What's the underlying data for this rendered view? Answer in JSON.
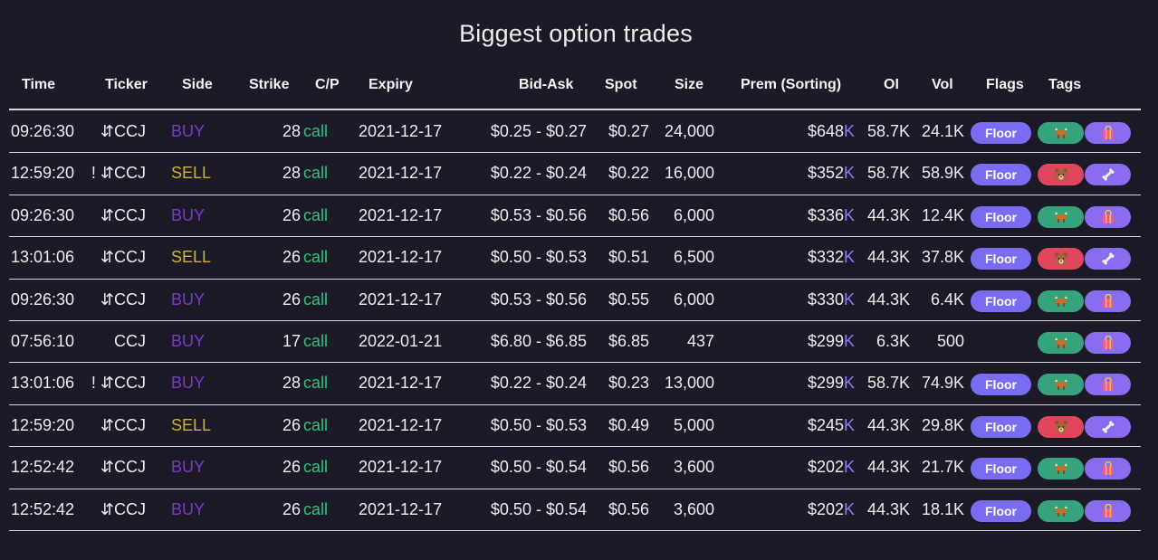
{
  "title": "Biggest option trades",
  "columns": {
    "time": "Time",
    "ticker": "Ticker",
    "side": "Side",
    "strike": "Strike",
    "cp": "C/P",
    "expiry": "Expiry",
    "bidask": "Bid-Ask",
    "spot": "Spot",
    "size": "Size",
    "prem": "Prem (Sorting)",
    "oi": "OI",
    "vol": "Vol",
    "flags": "Flags",
    "tags": "Tags"
  },
  "colors": {
    "background": "#1b1a26",
    "buy": "#7d38c9",
    "sell": "#d3b12e",
    "call": "#2ec27e",
    "floor_pill": "#7a6cf0",
    "bull_pill": "#36a37d",
    "bear_pill": "#e0465c",
    "tag2_pill": "#8a6cf0"
  },
  "rows": [
    {
      "time": "09:26:30",
      "ticker": "⇵CCJ",
      "side": "BUY",
      "strike": "28",
      "cp": "call",
      "expiry": "2021-12-17",
      "bidask": "$0.25 - $0.27",
      "spot": "$0.27",
      "size": "24,000",
      "prem": "$648",
      "prem_unit": "K",
      "oi": "58.7K",
      "vol": "24.1K",
      "flag": "Floor",
      "sentiment": "bullish",
      "sentiment_icon": "bull-icon",
      "tag2_icon": "shopping-bag-icon"
    },
    {
      "time": "12:59:20",
      "ticker": "! ⇵CCJ",
      "side": "SELL",
      "strike": "28",
      "cp": "call",
      "expiry": "2021-12-17",
      "bidask": "$0.22 - $0.24",
      "spot": "$0.22",
      "size": "16,000",
      "prem": "$352",
      "prem_unit": "K",
      "oi": "58.7K",
      "vol": "58.9K",
      "flag": "Floor",
      "sentiment": "bearish",
      "sentiment_icon": "bear-icon",
      "tag2_icon": "bone-icon"
    },
    {
      "time": "09:26:30",
      "ticker": "⇵CCJ",
      "side": "BUY",
      "strike": "26",
      "cp": "call",
      "expiry": "2021-12-17",
      "bidask": "$0.53 - $0.56",
      "spot": "$0.56",
      "size": "6,000",
      "prem": "$336",
      "prem_unit": "K",
      "oi": "44.3K",
      "vol": "12.4K",
      "flag": "Floor",
      "sentiment": "bullish",
      "sentiment_icon": "bull-icon",
      "tag2_icon": "shopping-bag-icon"
    },
    {
      "time": "13:01:06",
      "ticker": "⇵CCJ",
      "side": "SELL",
      "strike": "26",
      "cp": "call",
      "expiry": "2021-12-17",
      "bidask": "$0.50 - $0.53",
      "spot": "$0.51",
      "size": "6,500",
      "prem": "$332",
      "prem_unit": "K",
      "oi": "44.3K",
      "vol": "37.8K",
      "flag": "Floor",
      "sentiment": "bearish",
      "sentiment_icon": "bear-icon",
      "tag2_icon": "bone-icon"
    },
    {
      "time": "09:26:30",
      "ticker": "⇵CCJ",
      "side": "BUY",
      "strike": "26",
      "cp": "call",
      "expiry": "2021-12-17",
      "bidask": "$0.53 - $0.56",
      "spot": "$0.55",
      "size": "6,000",
      "prem": "$330",
      "prem_unit": "K",
      "oi": "44.3K",
      "vol": "6.4K",
      "flag": "Floor",
      "sentiment": "bullish",
      "sentiment_icon": "bull-icon",
      "tag2_icon": "shopping-bag-icon"
    },
    {
      "time": "07:56:10",
      "ticker": "CCJ",
      "side": "BUY",
      "strike": "17",
      "cp": "call",
      "expiry": "2022-01-21",
      "bidask": "$6.80 - $6.85",
      "spot": "$6.85",
      "size": "437",
      "prem": "$299",
      "prem_unit": "K",
      "oi": "6.3K",
      "vol": "500",
      "flag": "",
      "sentiment": "bullish",
      "sentiment_icon": "bull-icon",
      "tag2_icon": "shopping-bag-icon"
    },
    {
      "time": "13:01:06",
      "ticker": "! ⇵CCJ",
      "side": "BUY",
      "strike": "28",
      "cp": "call",
      "expiry": "2021-12-17",
      "bidask": "$0.22 - $0.24",
      "spot": "$0.23",
      "size": "13,000",
      "prem": "$299",
      "prem_unit": "K",
      "oi": "58.7K",
      "vol": "74.9K",
      "flag": "Floor",
      "sentiment": "bullish",
      "sentiment_icon": "bull-icon",
      "tag2_icon": "shopping-bag-icon"
    },
    {
      "time": "12:59:20",
      "ticker": "⇵CCJ",
      "side": "SELL",
      "strike": "26",
      "cp": "call",
      "expiry": "2021-12-17",
      "bidask": "$0.50 - $0.53",
      "spot": "$0.49",
      "size": "5,000",
      "prem": "$245",
      "prem_unit": "K",
      "oi": "44.3K",
      "vol": "29.8K",
      "flag": "Floor",
      "sentiment": "bearish",
      "sentiment_icon": "bear-icon",
      "tag2_icon": "bone-icon"
    },
    {
      "time": "12:52:42",
      "ticker": "⇵CCJ",
      "side": "BUY",
      "strike": "26",
      "cp": "call",
      "expiry": "2021-12-17",
      "bidask": "$0.50 - $0.54",
      "spot": "$0.56",
      "size": "3,600",
      "prem": "$202",
      "prem_unit": "K",
      "oi": "44.3K",
      "vol": "21.7K",
      "flag": "Floor",
      "sentiment": "bullish",
      "sentiment_icon": "bull-icon",
      "tag2_icon": "shopping-bag-icon"
    },
    {
      "time": "12:52:42",
      "ticker": "⇵CCJ",
      "side": "BUY",
      "strike": "26",
      "cp": "call",
      "expiry": "2021-12-17",
      "bidask": "$0.50 - $0.54",
      "spot": "$0.56",
      "size": "3,600",
      "prem": "$202",
      "prem_unit": "K",
      "oi": "44.3K",
      "vol": "18.1K",
      "flag": "Floor",
      "sentiment": "bullish",
      "sentiment_icon": "bull-icon",
      "tag2_icon": "shopping-bag-icon"
    }
  ]
}
